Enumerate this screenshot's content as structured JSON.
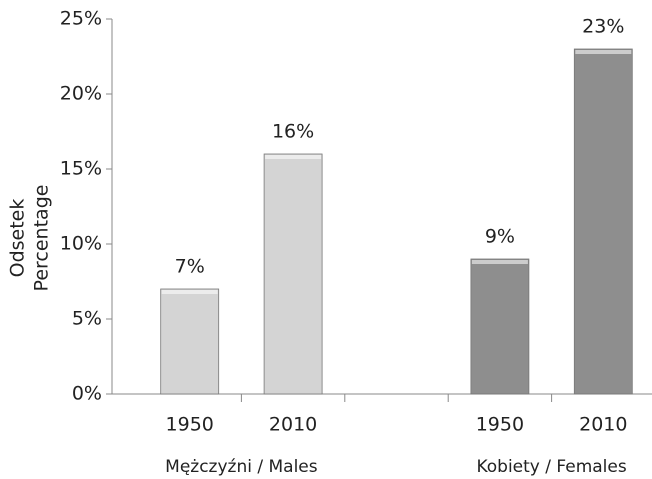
{
  "chart_data": {
    "type": "bar",
    "y_label_lines": [
      "Odsetek",
      "Percentage"
    ],
    "categories": [
      "1950",
      "2010",
      null,
      "1950",
      "2010"
    ],
    "values": [
      7,
      16,
      null,
      9,
      23
    ],
    "value_labels": [
      "7%",
      "16%",
      null,
      "9%",
      "23%"
    ],
    "colors": [
      "#d4d4d4",
      "#d4d4d4",
      null,
      "#8e8e8e",
      "#8e8e8e"
    ],
    "group_labels": [
      "Mężczyźni / Males",
      "Kobiety / Females"
    ],
    "ylim": [
      0,
      25
    ],
    "yticks": [
      {
        "value": 0,
        "label": "0%"
      },
      {
        "value": 5,
        "label": "5%"
      },
      {
        "value": 10,
        "label": "10%"
      },
      {
        "value": 15,
        "label": "15%"
      },
      {
        "value": 20,
        "label": "20%"
      },
      {
        "value": 25,
        "label": "25%"
      }
    ]
  }
}
